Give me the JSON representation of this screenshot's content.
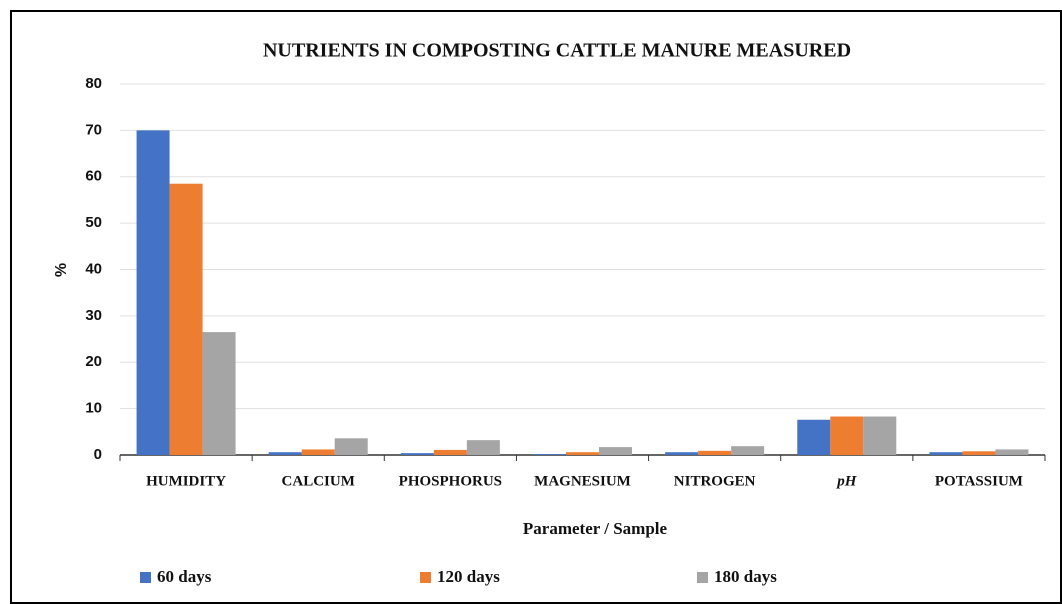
{
  "chart_data": {
    "type": "bar",
    "title": "NUTRIENTS IN COMPOSTING CATTLE MANURE MEASURED",
    "x_label": "Parameter / Sample",
    "y_label": "%",
    "categories": [
      "HUMIDITY",
      "CALCIUM",
      "PHOSPHORUS",
      "MAGNESIUM",
      "NITROGEN",
      "pH",
      "POTASSIUM"
    ],
    "series": [
      {
        "name": "60 days",
        "color": "#4472c4",
        "values": [
          70,
          0.6,
          0.4,
          0.2,
          0.6,
          7.6,
          0.6
        ]
      },
      {
        "name": "120 days",
        "color": "#ed7d31",
        "values": [
          58.5,
          1.2,
          1.1,
          0.6,
          0.9,
          8.3,
          0.8
        ]
      },
      {
        "name": "180 days",
        "color": "#a5a5a5",
        "values": [
          26.5,
          3.6,
          3.2,
          1.7,
          1.9,
          8.3,
          1.2
        ]
      }
    ],
    "ylim": [
      0,
      80
    ],
    "yticks": [
      0,
      10,
      20,
      30,
      40,
      50,
      60,
      70,
      80
    ],
    "grid": true,
    "legend": "bottom"
  }
}
